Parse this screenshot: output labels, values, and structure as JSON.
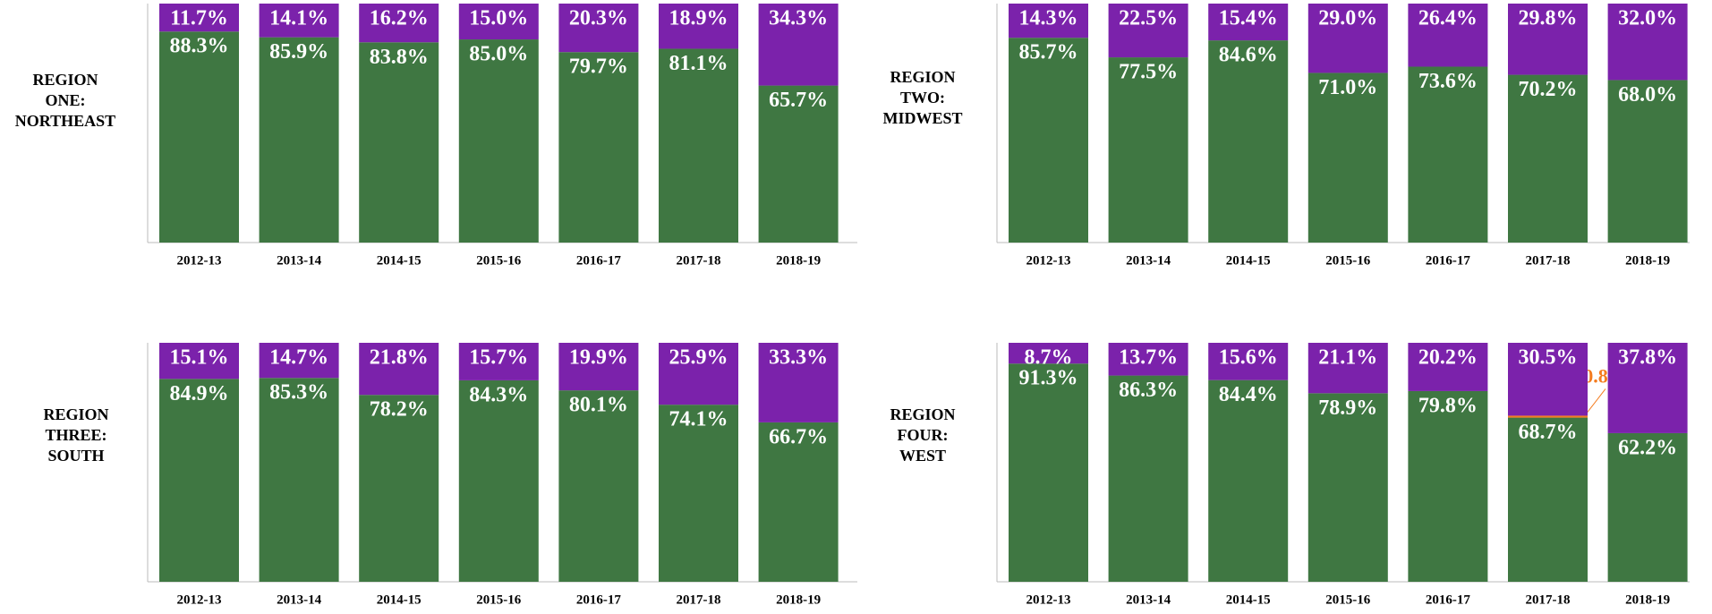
{
  "chart_data": [
    {
      "type": "bar",
      "stacked": true,
      "title": [
        "REGION",
        "ONE:",
        "NORTHEAST"
      ],
      "categories": [
        "2012-13",
        "2013-14",
        "2014-15",
        "2015-16",
        "2016-17",
        "2017-18",
        "2018-19"
      ],
      "ylim": [
        0,
        100
      ],
      "series": [
        {
          "color": "#3f7742",
          "values": [
            88.3,
            85.9,
            83.8,
            85.0,
            79.7,
            81.1,
            65.7
          ],
          "value_labels": [
            "88.3%",
            "85.9%",
            "83.8%",
            "85.0%",
            "79.7%",
            "81.1%",
            "65.7%"
          ]
        },
        {
          "color": "#7b22ab",
          "values": [
            11.7,
            14.1,
            16.2,
            15.0,
            20.3,
            18.9,
            34.3
          ],
          "value_labels": [
            "11.7%",
            "14.1%",
            "16.2%",
            "15.0%",
            "20.3%",
            "18.9%",
            "34.3%"
          ]
        }
      ]
    },
    {
      "type": "bar",
      "stacked": true,
      "title": [
        "REGION",
        "TWO:",
        "MIDWEST"
      ],
      "categories": [
        "2012-13",
        "2013-14",
        "2014-15",
        "2015-16",
        "2016-17",
        "2017-18",
        "2018-19"
      ],
      "ylim": [
        0,
        100
      ],
      "series": [
        {
          "color": "#3f7742",
          "values": [
            85.7,
            77.5,
            84.6,
            71.0,
            73.6,
            70.2,
            68.0
          ],
          "value_labels": [
            "85.7%",
            "77.5%",
            "84.6%",
            "71.0%",
            "73.6%",
            "70.2%",
            "68.0%"
          ]
        },
        {
          "color": "#7b22ab",
          "values": [
            14.3,
            22.5,
            15.4,
            29.0,
            26.4,
            29.8,
            32.0
          ],
          "value_labels": [
            "14.3%",
            "22.5%",
            "15.4%",
            "29.0%",
            "26.4%",
            "29.8%",
            "32.0%"
          ]
        }
      ]
    },
    {
      "type": "bar",
      "stacked": true,
      "title": [
        "REGION",
        "THREE:",
        "SOUTH"
      ],
      "categories": [
        "2012-13",
        "2013-14",
        "2014-15",
        "2015-16",
        "2016-17",
        "2017-18",
        "2018-19"
      ],
      "ylim": [
        0,
        100
      ],
      "series": [
        {
          "color": "#3f7742",
          "values": [
            84.9,
            85.3,
            78.2,
            84.3,
            80.1,
            74.1,
            66.7
          ],
          "value_labels": [
            "84.9%",
            "85.3%",
            "78.2%",
            "84.3%",
            "80.1%",
            "74.1%",
            "66.7%"
          ]
        },
        {
          "color": "#7b22ab",
          "values": [
            15.1,
            14.7,
            21.8,
            15.7,
            19.9,
            25.9,
            33.3
          ],
          "value_labels": [
            "15.1%",
            "14.7%",
            "21.8%",
            "15.7%",
            "19.9%",
            "25.9%",
            "33.3%"
          ]
        }
      ]
    },
    {
      "type": "bar",
      "stacked": true,
      "title": [
        "REGION",
        "FOUR:",
        "WEST"
      ],
      "categories": [
        "2012-13",
        "2013-14",
        "2014-15",
        "2015-16",
        "2016-17",
        "2017-18",
        "2018-19"
      ],
      "ylim": [
        0,
        100
      ],
      "series": [
        {
          "color": "#3f7742",
          "values": [
            91.3,
            86.3,
            84.4,
            78.9,
            79.8,
            68.7,
            62.2
          ],
          "value_labels": [
            "91.3%",
            "86.3%",
            "84.4%",
            "78.9%",
            "79.8%",
            "68.7%",
            "62.2%"
          ]
        },
        {
          "color": "#f47c20",
          "values": [
            null,
            null,
            null,
            null,
            null,
            0.8,
            null
          ],
          "value_labels": [
            null,
            null,
            null,
            null,
            null,
            "0.8%",
            null
          ]
        },
        {
          "color": "#7b22ab",
          "values": [
            8.7,
            13.7,
            15.6,
            21.1,
            20.2,
            30.5,
            37.8
          ],
          "value_labels": [
            "8.7%",
            "13.7%",
            "15.6%",
            "21.1%",
            "20.2%",
            "30.5%",
            "37.8%"
          ]
        }
      ]
    }
  ]
}
